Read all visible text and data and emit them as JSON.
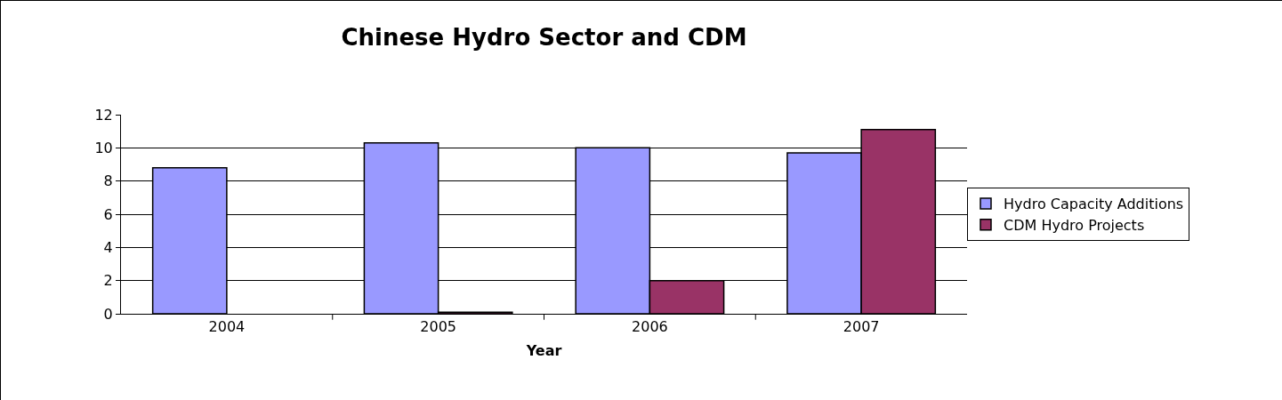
{
  "chart_data": {
    "type": "bar",
    "title": "Chinese Hydro Sector and CDM",
    "xlabel": "Year",
    "categories": [
      "2004",
      "2005",
      "2006",
      "2007"
    ],
    "series": [
      {
        "name": "Hydro Capacity Additions",
        "color": "#9999ff",
        "values": [
          8.8,
          10.3,
          10.0,
          9.7
        ]
      },
      {
        "name": "CDM Hydro Projects",
        "color": "#993366",
        "values": [
          null,
          0.1,
          2.0,
          11.1
        ]
      }
    ],
    "ylim": [
      0,
      12
    ],
    "yticks": [
      0,
      2,
      4,
      6,
      8,
      10,
      12
    ],
    "grid": "y",
    "legend": "right"
  }
}
